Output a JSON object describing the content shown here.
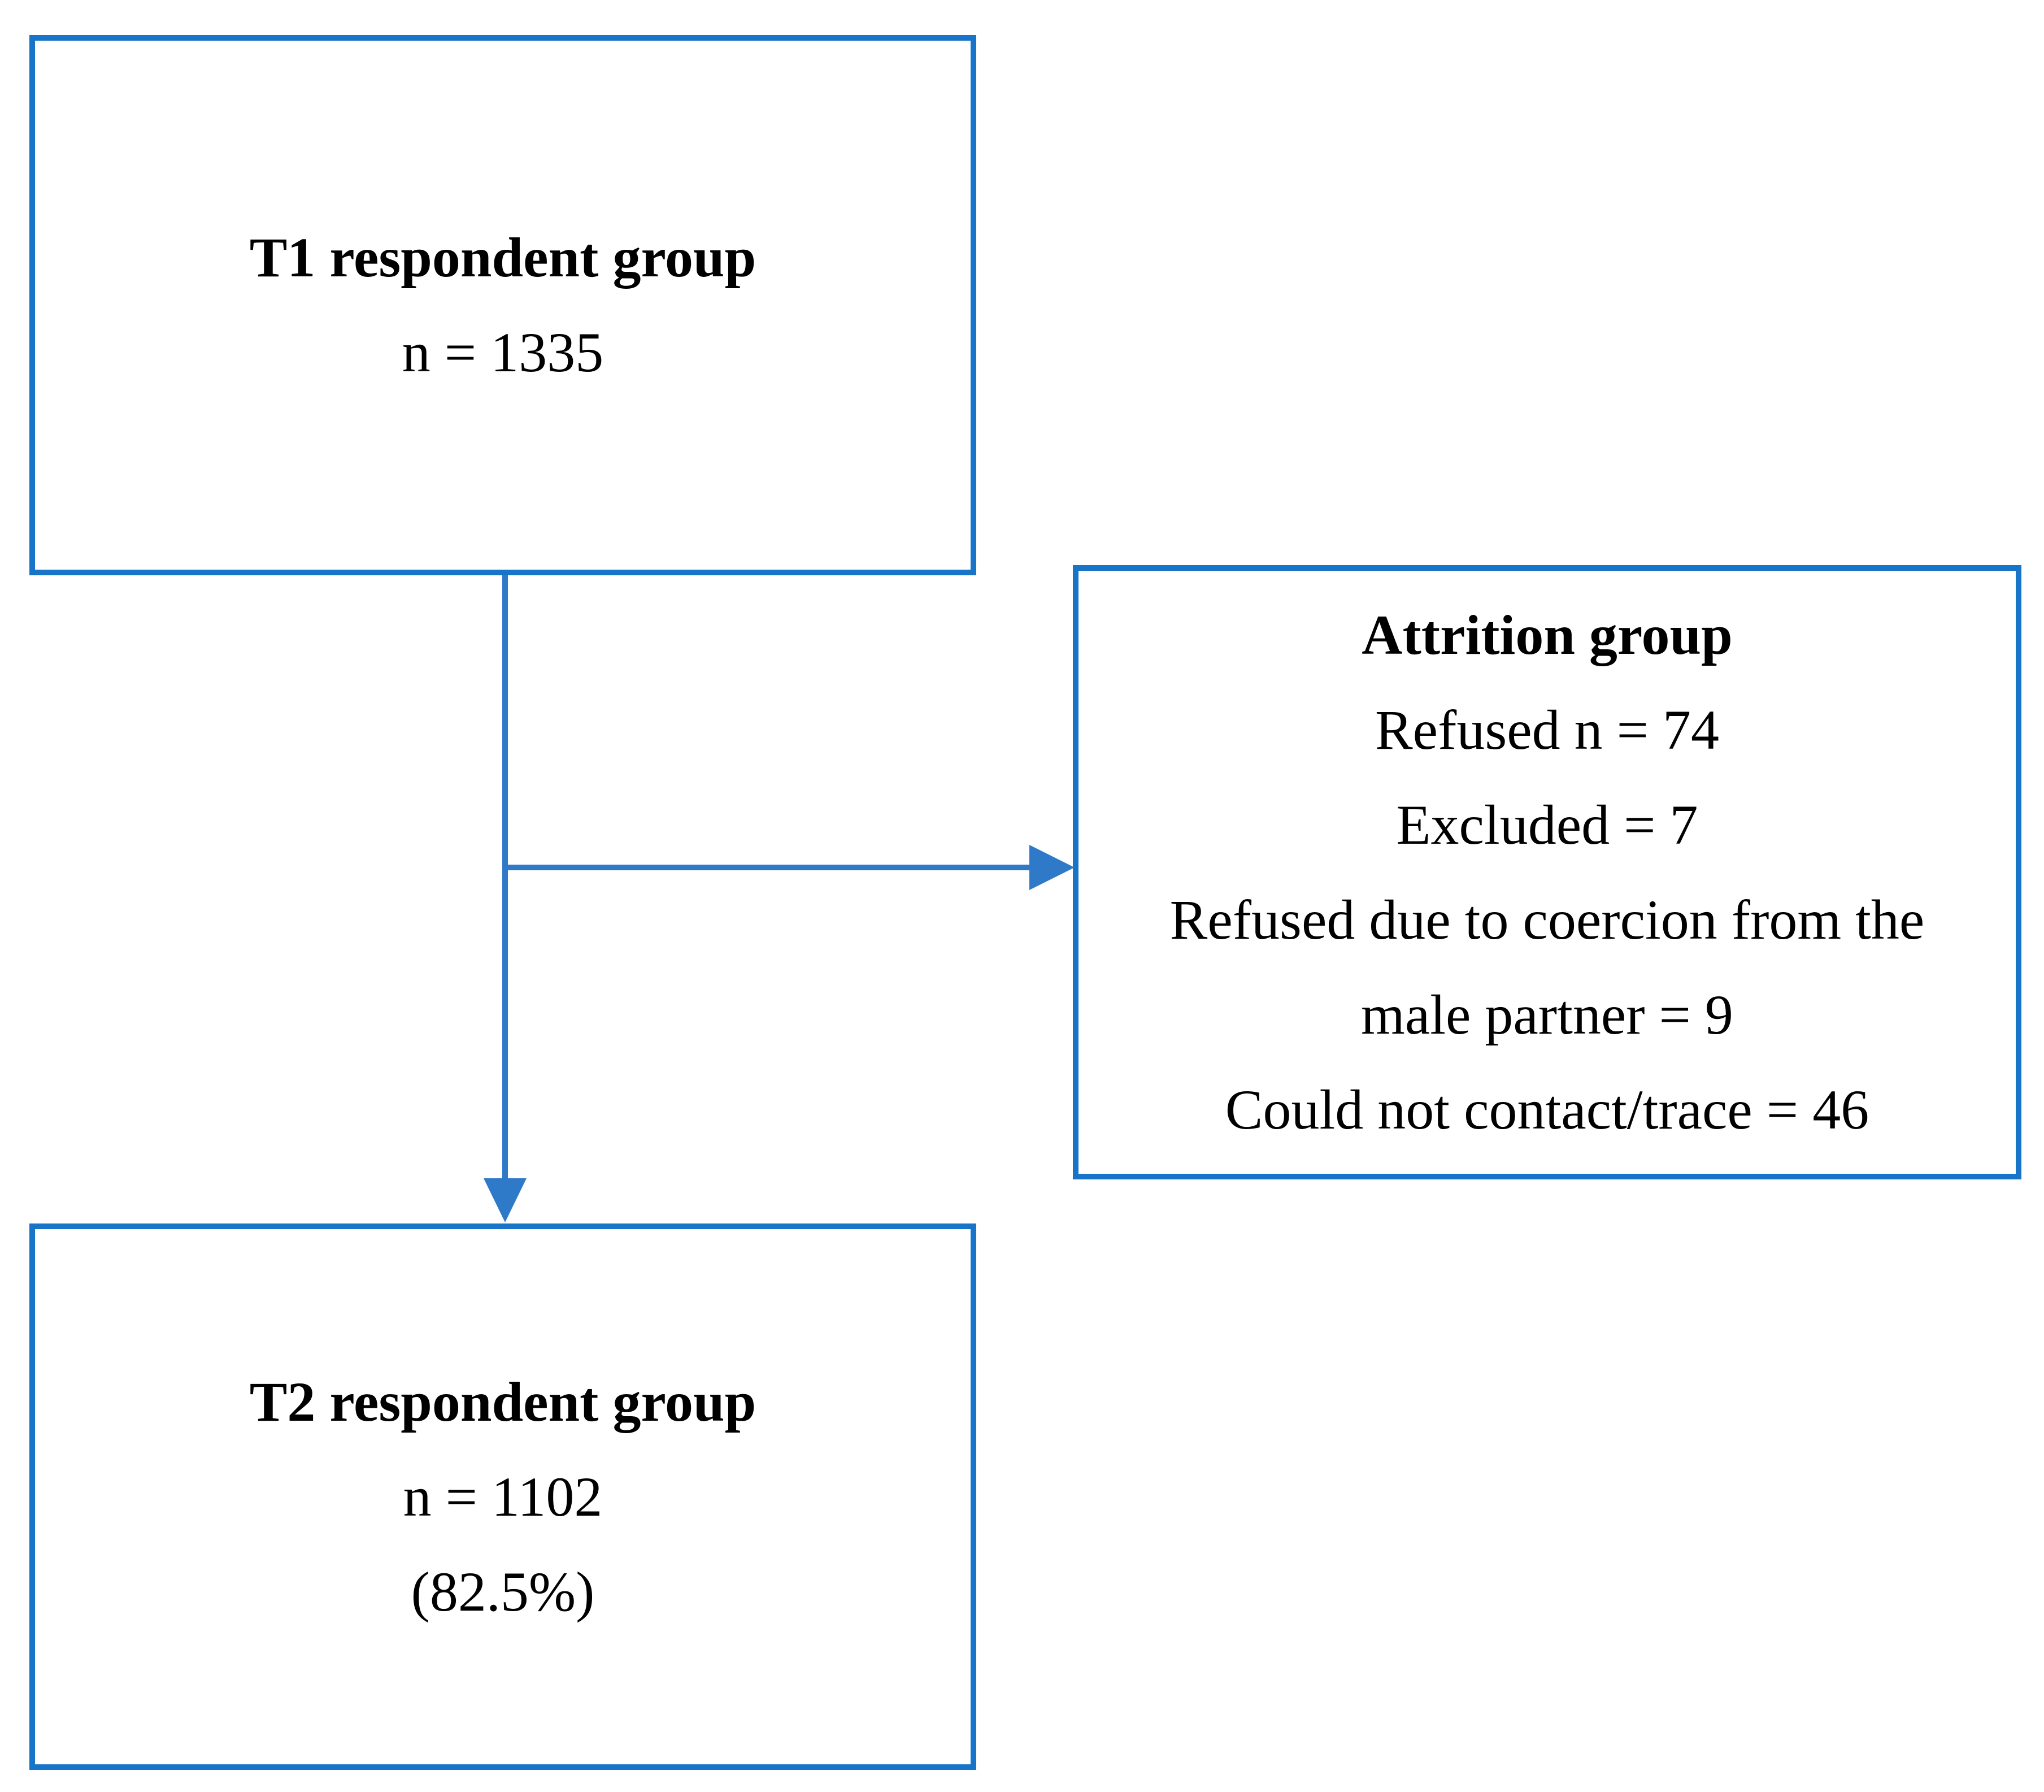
{
  "figure": {
    "type": "participant-flow-diagram",
    "background_color": "#ffffff",
    "box_border_color": "#1774C8",
    "connector_color": "#2E79C8",
    "text_color": "#000000"
  },
  "t1_box": {
    "title": "T1 respondent group",
    "lines": [
      "n = 1335"
    ]
  },
  "attrition_box": {
    "title": "Attrition group",
    "lines": [
      "Refused n = 74",
      "Excluded = 7",
      "Refused due to coercion from the",
      "male partner = 9",
      "Could not contact/trace = 46"
    ]
  },
  "t2_box": {
    "title": "T2 respondent group",
    "lines": [
      "n = 1102",
      "(82.5%)"
    ]
  },
  "connectors": {
    "t1_to_t2": "vertical-arrow-down",
    "t1_to_attrition": "horizontal-arrow-right"
  }
}
